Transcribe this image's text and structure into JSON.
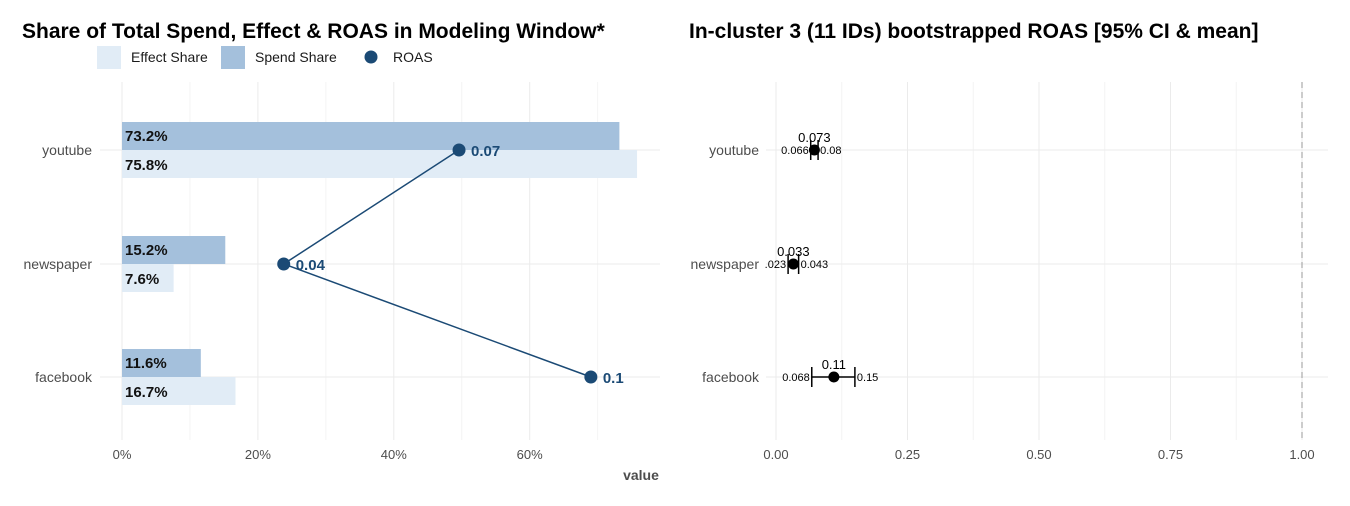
{
  "chart_data": [
    {
      "type": "bar",
      "title": "Share of Total Spend, Effect & ROAS in Modeling Window*",
      "xlabel": "value",
      "categories": [
        "youtube",
        "newspaper",
        "facebook"
      ],
      "series": [
        {
          "name": "Spend Share",
          "values": [
            73.2,
            15.2,
            11.6
          ],
          "labels": [
            "73.2%",
            "15.2%",
            "11.6%"
          ],
          "color": "#a4c0dc"
        },
        {
          "name": "Effect Share",
          "values": [
            75.8,
            7.6,
            16.7
          ],
          "labels": [
            "75.8%",
            "7.6%",
            "16.7%"
          ],
          "color": "#e1ecf6"
        },
        {
          "name": "ROAS",
          "values": [
            0.07,
            0.04,
            0.1
          ],
          "labels": [
            "0.07",
            "0.04",
            "0.1"
          ],
          "plot_positions": [
            49.6,
            23.8,
            69.0
          ],
          "color": "#1b4a75"
        }
      ],
      "legend": {
        "position": "top-left",
        "items": [
          "Effect Share",
          "Spend Share",
          "ROAS"
        ]
      },
      "xlim": [
        0,
        80
      ],
      "xticks": [
        0,
        20,
        40,
        60
      ],
      "xtick_labels": [
        "0%",
        "20%",
        "40%",
        "60%"
      ],
      "grid": true
    },
    {
      "type": "scatter",
      "title": "In-cluster 3 (11 IDs) bootstrapped ROAS [95% CI & mean]",
      "categories": [
        "youtube",
        "newspaper",
        "facebook"
      ],
      "mean": [
        0.073,
        0.033,
        0.11
      ],
      "mean_labels": [
        "0.073",
        "0.033",
        "0.11"
      ],
      "ci_low": [
        0.066,
        0.023,
        0.068
      ],
      "ci_low_labels": [
        "0.066",
        ".023",
        "0.068"
      ],
      "ci_high": [
        0.08,
        0.043,
        0.15
      ],
      "ci_high_labels": [
        "0.08",
        "0.043",
        "0.15"
      ],
      "reference_line": 1.0,
      "xlim": [
        0,
        1.05
      ],
      "xticks": [
        0,
        0.25,
        0.5,
        0.75,
        1.0
      ],
      "xtick_labels": [
        "0.00",
        "0.25",
        "0.50",
        "0.75",
        "1.00"
      ],
      "grid": true
    }
  ]
}
